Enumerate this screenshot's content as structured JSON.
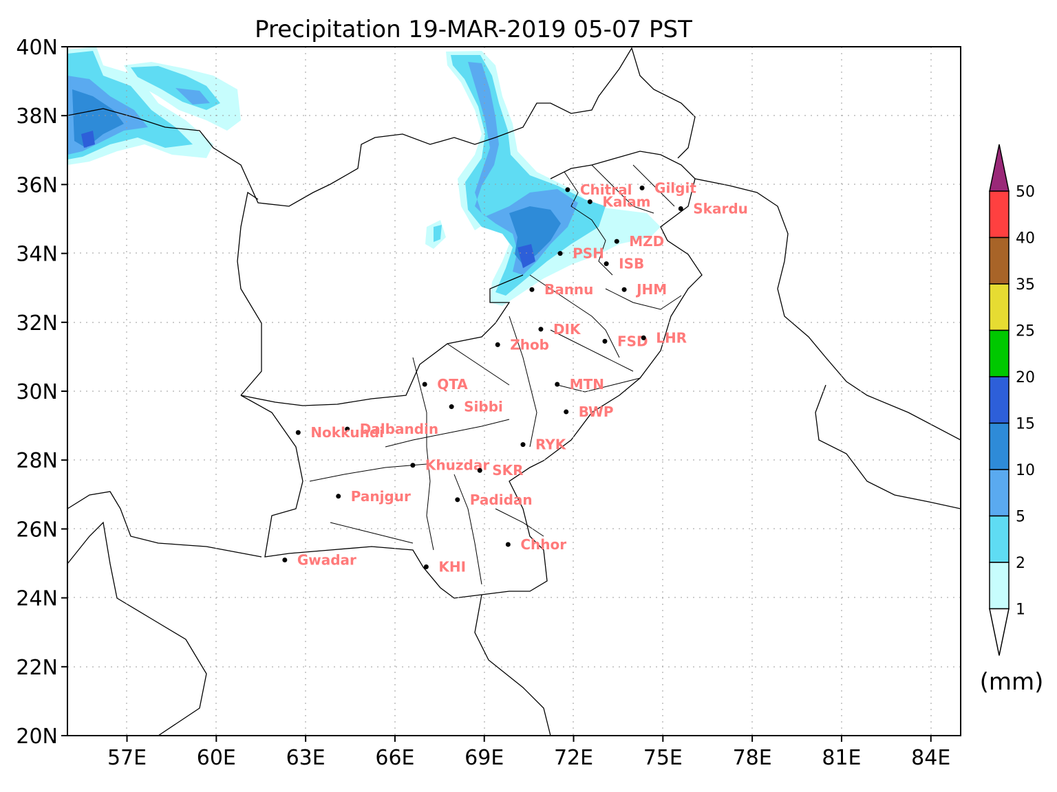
{
  "title": "Precipitation 19-MAR-2019 05-07 PST",
  "units": "(mm)",
  "lat_ticks": [
    {
      "value": 40,
      "label": "40N"
    },
    {
      "value": 38,
      "label": "38N"
    },
    {
      "value": 36,
      "label": "36N"
    },
    {
      "value": 34,
      "label": "34N"
    },
    {
      "value": 32,
      "label": "32N"
    },
    {
      "value": 30,
      "label": "30N"
    },
    {
      "value": 28,
      "label": "28N"
    },
    {
      "value": 26,
      "label": "26N"
    },
    {
      "value": 24,
      "label": "24N"
    },
    {
      "value": 22,
      "label": "22N"
    },
    {
      "value": 20,
      "label": "20N"
    }
  ],
  "lon_ticks": [
    {
      "value": 57,
      "label": "57E"
    },
    {
      "value": 60,
      "label": "60E"
    },
    {
      "value": 63,
      "label": "63E"
    },
    {
      "value": 66,
      "label": "66E"
    },
    {
      "value": 69,
      "label": "69E"
    },
    {
      "value": 72,
      "label": "72E"
    },
    {
      "value": 75,
      "label": "75E"
    },
    {
      "value": 78,
      "label": "78E"
    },
    {
      "value": 81,
      "label": "81E"
    },
    {
      "value": 84,
      "label": "84E"
    }
  ],
  "lon_range": [
    55,
    85
  ],
  "lat_range": [
    20,
    40
  ],
  "colorbar": {
    "levels": [
      "1",
      "2",
      "5",
      "10",
      "15",
      "20",
      "25",
      "35",
      "40",
      "50"
    ],
    "colors": [
      "#c7fdfd",
      "#5fdcf3",
      "#5aaaf0",
      "#2e8bd8",
      "#2d5fd9",
      "#00c800",
      "#e6dc32",
      "#a86428",
      "#ff4040",
      "#9a2878"
    ],
    "under_color": "#ffffff"
  },
  "cities": [
    {
      "name": "Chitral",
      "lon": 71.8,
      "lat": 35.85
    },
    {
      "name": "Gilgit",
      "lon": 74.3,
      "lat": 35.9
    },
    {
      "name": "Kalam",
      "lon": 72.55,
      "lat": 35.5
    },
    {
      "name": "Skardu",
      "lon": 75.6,
      "lat": 35.3
    },
    {
      "name": "MZD",
      "lon": 73.45,
      "lat": 34.35
    },
    {
      "name": "PSH",
      "lon": 71.55,
      "lat": 34.0
    },
    {
      "name": "ISB",
      "lon": 73.1,
      "lat": 33.7
    },
    {
      "name": "Bannu",
      "lon": 70.6,
      "lat": 32.95
    },
    {
      "name": "JHM",
      "lon": 73.7,
      "lat": 32.95
    },
    {
      "name": "DIK",
      "lon": 70.9,
      "lat": 31.8
    },
    {
      "name": "Zhob",
      "lon": 69.45,
      "lat": 31.35
    },
    {
      "name": "FSD",
      "lon": 73.05,
      "lat": 31.45
    },
    {
      "name": "LHR",
      "lon": 74.35,
      "lat": 31.55
    },
    {
      "name": "QTA",
      "lon": 67.0,
      "lat": 30.2
    },
    {
      "name": "MTN",
      "lon": 71.45,
      "lat": 30.2
    },
    {
      "name": "Sibbi",
      "lon": 67.9,
      "lat": 29.55
    },
    {
      "name": "BWP",
      "lon": 71.75,
      "lat": 29.4
    },
    {
      "name": "Dalbandin",
      "lon": 64.4,
      "lat": 28.9
    },
    {
      "name": "Nokkundi",
      "lon": 62.75,
      "lat": 28.8
    },
    {
      "name": "RYK",
      "lon": 70.3,
      "lat": 28.45
    },
    {
      "name": "Khuzdar",
      "lon": 66.6,
      "lat": 27.85
    },
    {
      "name": "SKR",
      "lon": 68.85,
      "lat": 27.7
    },
    {
      "name": "Panjgur",
      "lon": 64.1,
      "lat": 26.95
    },
    {
      "name": "Padidan",
      "lon": 68.1,
      "lat": 26.85
    },
    {
      "name": "Chhor",
      "lon": 69.8,
      "lat": 25.55
    },
    {
      "name": "Gwadar",
      "lon": 62.3,
      "lat": 25.1
    },
    {
      "name": "KHI",
      "lon": 67.05,
      "lat": 24.9
    }
  ]
}
